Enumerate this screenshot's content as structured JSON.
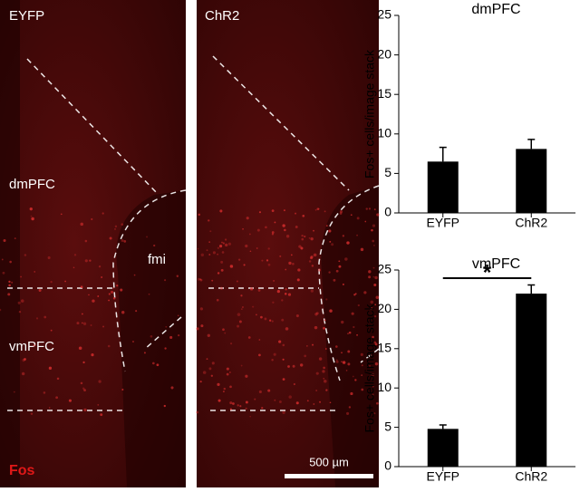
{
  "panels": [
    {
      "label": "EYFP",
      "regions": [
        "dmPFC",
        "vmPFC"
      ],
      "landmark": "fmi",
      "stain": "Fos"
    },
    {
      "label": "ChR2",
      "scale_bar": "500 µm"
    }
  ],
  "chart_data": [
    {
      "type": "bar",
      "title": "dmPFC",
      "ylabel": "Fos+ cells/image stack",
      "categories": [
        "EYFP",
        "ChR2"
      ],
      "values": [
        6.5,
        8.1
      ],
      "errors": [
        1.8,
        1.2
      ],
      "color": "#000000",
      "ylim": [
        0,
        25
      ],
      "yticks": [
        0,
        5,
        10,
        15,
        20,
        25
      ]
    },
    {
      "type": "bar",
      "title": "vmPFC",
      "ylabel": "Fos+ cells/image stack",
      "categories": [
        "EYFP",
        "ChR2"
      ],
      "values": [
        4.8,
        22
      ],
      "errors": [
        0.5,
        1.1
      ],
      "color": "#000000",
      "ylim": [
        0,
        25
      ],
      "yticks": [
        0,
        5,
        10,
        15,
        20,
        25
      ],
      "annotation": "*"
    }
  ]
}
